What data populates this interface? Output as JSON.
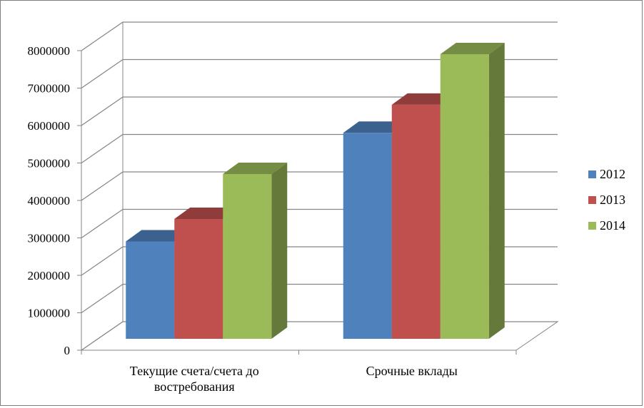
{
  "chart_data": {
    "type": "bar",
    "categories": [
      "Текущие счета/счета до востребования",
      "Срочные вклады"
    ],
    "category_lines": [
      [
        "Текущие  счета/счета до",
        "востребования"
      ],
      [
        "Срочные вклады"
      ]
    ],
    "series": [
      {
        "name": "2012",
        "values": [
          2600000,
          5500000
        ],
        "color": "#4f81bd"
      },
      {
        "name": "2013",
        "values": [
          3200000,
          6250000
        ],
        "color": "#c0504d"
      },
      {
        "name": "2014",
        "values": [
          4400000,
          7600000
        ],
        "color": "#9bbb59"
      }
    ],
    "yticks": [
      "0",
      "1000000",
      "2000000",
      "3000000",
      "4000000",
      "5000000",
      "6000000",
      "7000000",
      "8000000"
    ],
    "ylim": [
      0,
      8000000
    ],
    "title": "",
    "xlabel": "",
    "ylabel": "",
    "legend_position": "right",
    "grid": true,
    "style": "3d-clustered-column"
  }
}
